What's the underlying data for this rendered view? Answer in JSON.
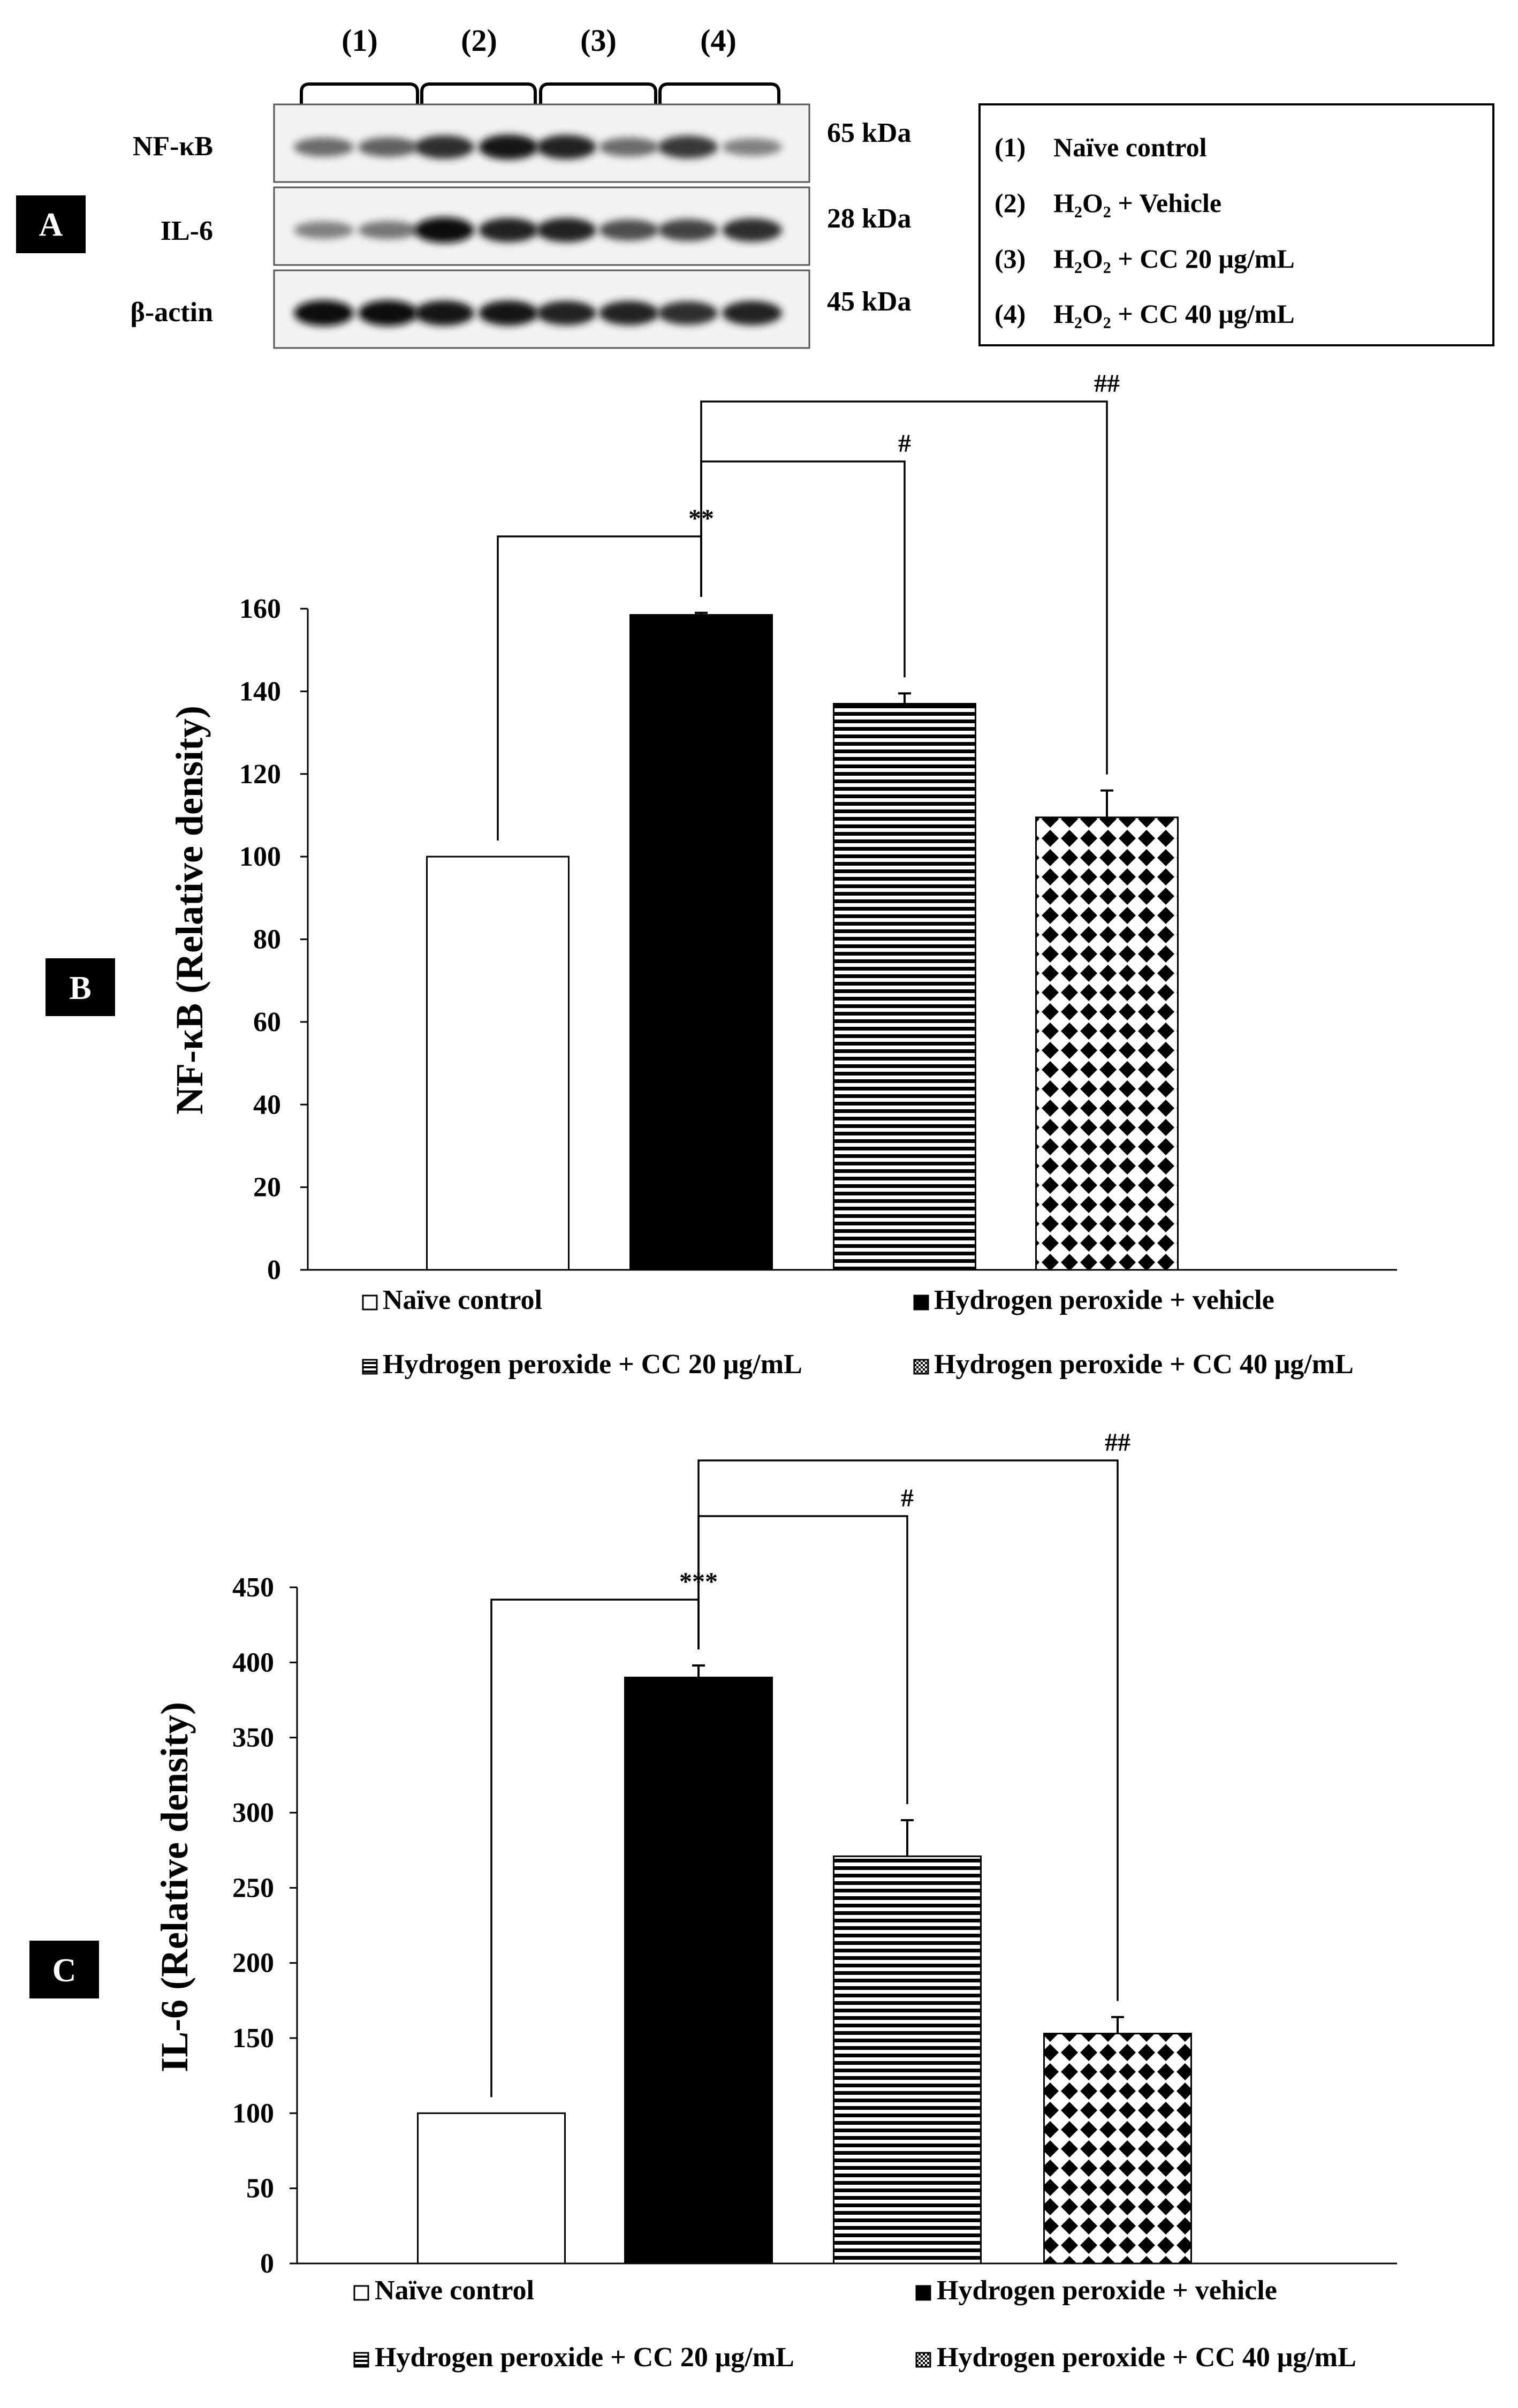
{
  "panel_labels": [
    "A",
    "B",
    "C"
  ],
  "blot": {
    "lane_groups": [
      "(1)",
      "(2)",
      "(3)",
      "(4)"
    ],
    "proteins": [
      {
        "name": "NF-κB",
        "kda": "65 kDa",
        "intensities": [
          0.55,
          0.6,
          0.85,
          0.95,
          0.9,
          0.55,
          0.8,
          0.45
        ]
      },
      {
        "name": "IL-6",
        "kda": "28 kDa",
        "intensities": [
          0.45,
          0.5,
          1.0,
          0.9,
          0.9,
          0.7,
          0.75,
          0.85
        ]
      },
      {
        "name": "β-actin",
        "kda": "45 kDa",
        "intensities": [
          1.0,
          1.0,
          0.95,
          0.95,
          0.9,
          0.9,
          0.85,
          0.9
        ]
      }
    ],
    "legend": [
      {
        "num": "(1)",
        "text": "Naïve control"
      },
      {
        "num": "(2)",
        "text": "H₂O₂ + Vehicle"
      },
      {
        "num": "(3)",
        "text": "H₂O₂ + CC 20 μg/mL"
      },
      {
        "num": "(4)",
        "text": "H₂O₂ + CC 40 μg/mL"
      }
    ]
  },
  "colors": {
    "ink": "#000000",
    "fill_white": "#ffffff",
    "panel_label_bg": "#000000"
  },
  "chart_data": [
    {
      "type": "bar",
      "panel": "B",
      "ylabel": "NF-κB (Relative density)",
      "ylim": [
        0,
        160
      ],
      "yticks": [
        0,
        20,
        40,
        60,
        80,
        100,
        120,
        140,
        160
      ],
      "categories": [
        "Naïve control",
        "Hydrogen peroxide + vehicle",
        "Hydrogen peroxide + CC 20 μg/mL",
        "Hydrogen peroxide + CC 40 μg/mL"
      ],
      "values": [
        100,
        158.5,
        137,
        109.5
      ],
      "errors": [
        0,
        0.5,
        2.5,
        6.5
      ],
      "patterns": [
        "white",
        "black",
        "hlines",
        "checker"
      ],
      "significance": [
        {
          "from": 0,
          "to": 1,
          "label": "**",
          "level": 1
        },
        {
          "from": 1,
          "to": 2,
          "label": "#",
          "level": 2
        },
        {
          "from": 1,
          "to": 3,
          "label": "##",
          "level": 3
        }
      ],
      "legend": [
        "Naïve control",
        "Hydrogen peroxide + vehicle",
        "Hydrogen peroxide + CC 20 μg/mL",
        "Hydrogen peroxide + CC 40 μg/mL"
      ]
    },
    {
      "type": "bar",
      "panel": "C",
      "ylabel": "IL-6 (Relative density)",
      "ylim": [
        0,
        450
      ],
      "yticks": [
        0,
        50,
        100,
        150,
        200,
        250,
        300,
        350,
        400,
        450
      ],
      "categories": [
        "Naïve control",
        "Hydrogen peroxide + vehicle",
        "Hydrogen peroxide + CC 20 μg/mL",
        "Hydrogen peroxide + CC 40 μg/mL"
      ],
      "values": [
        100,
        390,
        271,
        153
      ],
      "errors": [
        0,
        8,
        24,
        11
      ],
      "patterns": [
        "white",
        "black",
        "hlines",
        "checker"
      ],
      "significance": [
        {
          "from": 0,
          "to": 1,
          "label": "***",
          "level": 1
        },
        {
          "from": 1,
          "to": 2,
          "label": "#",
          "level": 2
        },
        {
          "from": 1,
          "to": 3,
          "label": "##",
          "level": 3
        }
      ],
      "legend": [
        "Naïve control",
        "Hydrogen peroxide + vehicle",
        "Hydrogen peroxide + CC 20 μg/mL",
        "Hydrogen peroxide + CC 40 μg/mL"
      ]
    }
  ]
}
